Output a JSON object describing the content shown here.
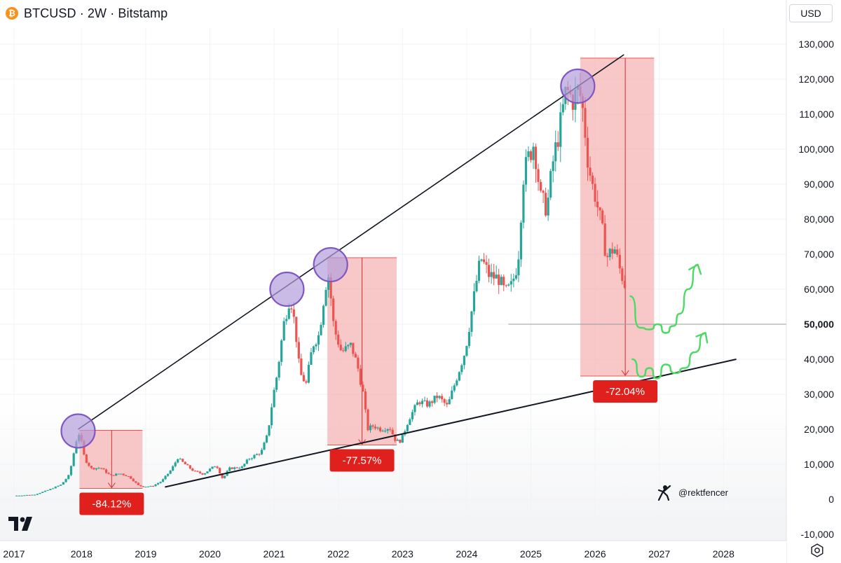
{
  "header": {
    "symbol": "BTCUSD · 2W · Bitstamp",
    "icon": "bitcoin-icon"
  },
  "currency_button": "USD",
  "watermark_handle": "@rektfencer",
  "colors": {
    "up": "#26a69a",
    "down": "#ef5350",
    "zone_fill": "#f5b5b5",
    "circle": "#7e57c2",
    "projection": "#4cd964",
    "label_bg": "#e0201c"
  },
  "chart_data": {
    "type": "candlestick",
    "title": "BTCUSD · 2W · Bitstamp",
    "xlabel": "",
    "ylabel": "",
    "ylim": [
      -12000,
      135000
    ],
    "xlim": [
      2017.0,
      2028.4
    ],
    "x_ticks": [
      "2017",
      "2018",
      "2019",
      "2020",
      "2021",
      "2022",
      "2023",
      "2024",
      "2025",
      "2026",
      "2027",
      "2028"
    ],
    "y_ticks": [
      "130,000",
      "120,000",
      "110,000",
      "100,000",
      "90,000",
      "80,000",
      "70,000",
      "60,000",
      "50,000",
      "40,000",
      "30,000",
      "20,000",
      "10,000",
      "0",
      "-10,000"
    ],
    "highlighted_tick": "50,000",
    "close_series": [
      [
        2017.0,
        1000
      ],
      [
        2017.3,
        1300
      ],
      [
        2017.5,
        2600
      ],
      [
        2017.7,
        4200
      ],
      [
        2017.82,
        7000
      ],
      [
        2017.93,
        17500
      ],
      [
        2017.97,
        19000
      ],
      [
        2018.05,
        11500
      ],
      [
        2018.15,
        8800
      ],
      [
        2018.3,
        9000
      ],
      [
        2018.45,
        6700
      ],
      [
        2018.6,
        7400
      ],
      [
        2018.75,
        6400
      ],
      [
        2018.88,
        4000
      ],
      [
        2018.96,
        3600
      ],
      [
        2019.1,
        3700
      ],
      [
        2019.25,
        5200
      ],
      [
        2019.4,
        8500
      ],
      [
        2019.5,
        11800
      ],
      [
        2019.6,
        10200
      ],
      [
        2019.75,
        8000
      ],
      [
        2019.9,
        7200
      ],
      [
        2020.0,
        8600
      ],
      [
        2020.1,
        9800
      ],
      [
        2020.2,
        5800
      ],
      [
        2020.3,
        8800
      ],
      [
        2020.5,
        9200
      ],
      [
        2020.6,
        11500
      ],
      [
        2020.8,
        13500
      ],
      [
        2020.9,
        18500
      ],
      [
        2020.98,
        29000
      ],
      [
        2021.05,
        36000
      ],
      [
        2021.15,
        50000
      ],
      [
        2021.25,
        58000
      ],
      [
        2021.33,
        49000
      ],
      [
        2021.4,
        36000
      ],
      [
        2021.5,
        33000
      ],
      [
        2021.6,
        44000
      ],
      [
        2021.7,
        47000
      ],
      [
        2021.8,
        61000
      ],
      [
        2021.85,
        64000
      ],
      [
        2021.93,
        49000
      ],
      [
        2022.05,
        42000
      ],
      [
        2022.2,
        44000
      ],
      [
        2022.3,
        38000
      ],
      [
        2022.4,
        29000
      ],
      [
        2022.45,
        20000
      ],
      [
        2022.55,
        21000
      ],
      [
        2022.65,
        20000
      ],
      [
        2022.8,
        20500
      ],
      [
        2022.9,
        16500
      ],
      [
        2022.98,
        16800
      ],
      [
        2023.1,
        23000
      ],
      [
        2023.25,
        28000
      ],
      [
        2023.4,
        27000
      ],
      [
        2023.55,
        29500
      ],
      [
        2023.7,
        26500
      ],
      [
        2023.85,
        35000
      ],
      [
        2023.98,
        42500
      ],
      [
        2024.15,
        62000
      ],
      [
        2024.22,
        69000
      ],
      [
        2024.35,
        64000
      ],
      [
        2024.5,
        63000
      ],
      [
        2024.6,
        59000
      ],
      [
        2024.7,
        61000
      ],
      [
        2024.8,
        68000
      ],
      [
        2024.88,
        92000
      ],
      [
        2024.95,
        97000
      ],
      [
        2025.05,
        102000
      ],
      [
        2025.15,
        86000
      ],
      [
        2025.25,
        83000
      ],
      [
        2025.35,
        97000
      ],
      [
        2025.45,
        106000
      ],
      [
        2025.55,
        117000
      ],
      [
        2025.65,
        114000
      ],
      [
        2025.75,
        117000
      ],
      [
        2025.82,
        110000
      ],
      [
        2025.88,
        98000
      ],
      [
        2025.95,
        90000
      ],
      [
        2026.0,
        87000
      ],
      [
        2026.1,
        78000
      ],
      [
        2026.18,
        69000
      ],
      [
        2026.3,
        72000
      ],
      [
        2026.38,
        66000
      ],
      [
        2026.45,
        62000
      ],
      [
        2026.48,
        60500
      ]
    ],
    "trendlines": [
      {
        "name": "upper",
        "from": [
          2017.95,
          20000
        ],
        "to": [
          2026.45,
          127000
        ]
      },
      {
        "name": "lower",
        "from": [
          2019.3,
          3500
        ],
        "to": [
          2028.2,
          40000
        ]
      }
    ],
    "horizontal_level": {
      "y": 50000,
      "from_x": 2024.65
    },
    "drawdowns": [
      {
        "label": "-84.12%",
        "x0": 2017.97,
        "x1": 2018.95,
        "top": 19700,
        "bottom": 3100,
        "arrow_x": 2018.47
      },
      {
        "label": "-77.57%",
        "x0": 2021.83,
        "x1": 2022.91,
        "top": 69000,
        "bottom": 15500,
        "arrow_x": 2022.37
      },
      {
        "label": "-72.04%",
        "x0": 2025.77,
        "x1": 2026.92,
        "top": 126000,
        "bottom": 35200,
        "arrow_x": 2026.47
      }
    ],
    "highlight_circles": [
      [
        2017.95,
        19500
      ],
      [
        2021.2,
        60000
      ],
      [
        2021.88,
        67000
      ],
      [
        2025.73,
        118000
      ]
    ],
    "projections": [
      {
        "name": "path-upper",
        "points": [
          [
            2026.55,
            58000
          ],
          [
            2026.7,
            49000
          ],
          [
            2026.85,
            48500
          ],
          [
            2026.98,
            50000
          ],
          [
            2027.1,
            47500
          ],
          [
            2027.22,
            49500
          ],
          [
            2027.32,
            53000
          ],
          [
            2027.45,
            60000
          ],
          [
            2027.6,
            67000
          ]
        ]
      },
      {
        "name": "path-lower",
        "points": [
          [
            2026.58,
            40000
          ],
          [
            2026.72,
            35000
          ],
          [
            2026.85,
            37500
          ],
          [
            2026.96,
            34500
          ],
          [
            2027.1,
            38500
          ],
          [
            2027.25,
            36000
          ],
          [
            2027.4,
            37500
          ],
          [
            2027.55,
            42000
          ],
          [
            2027.72,
            47500
          ]
        ]
      }
    ]
  }
}
